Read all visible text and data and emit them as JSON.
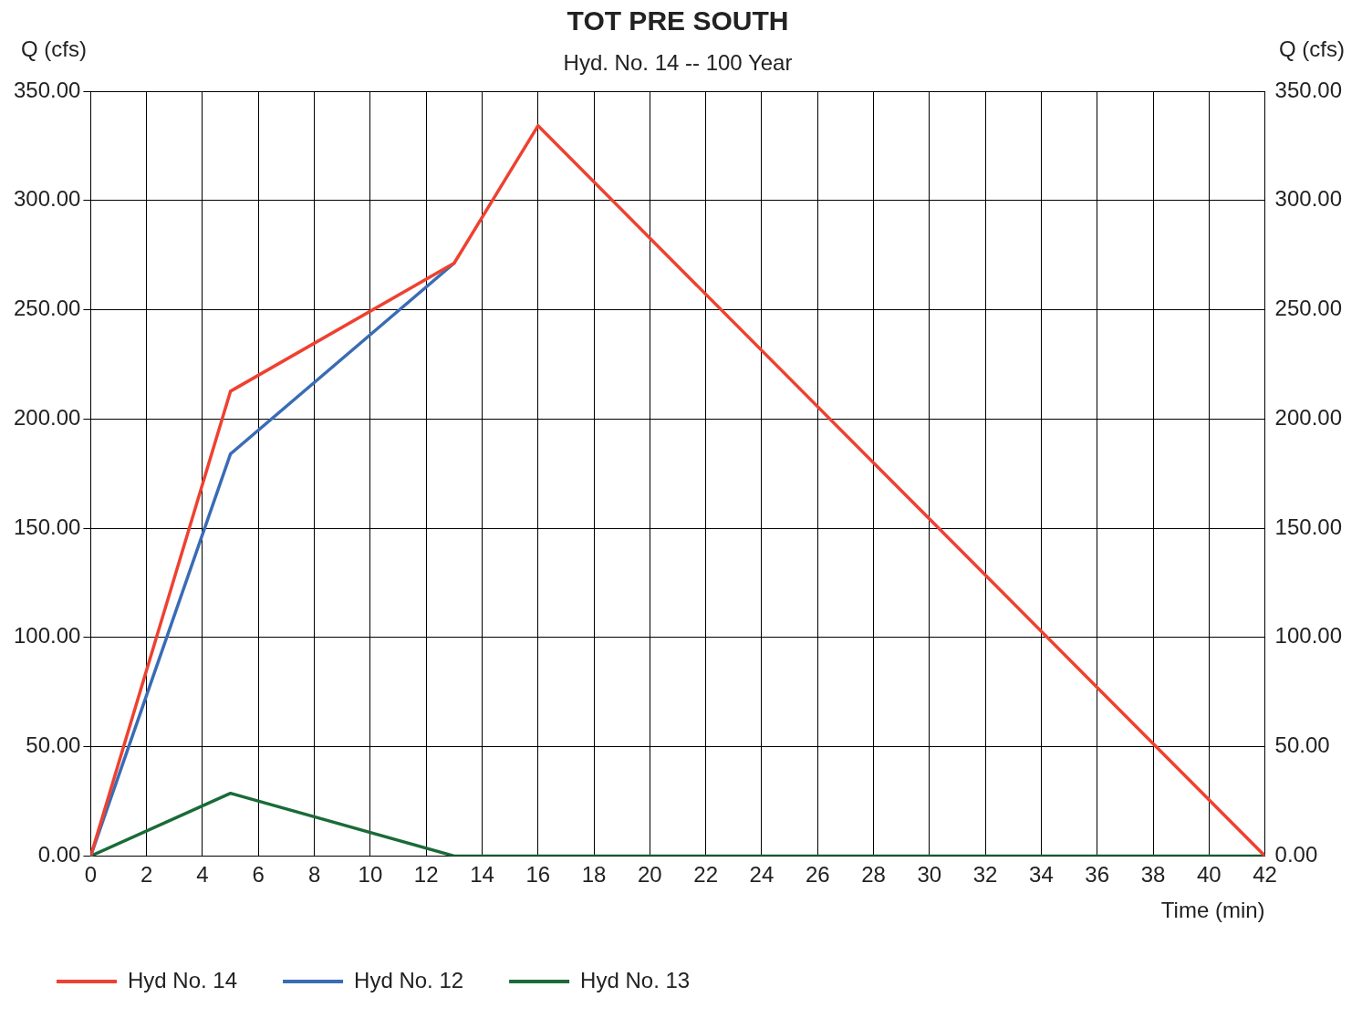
{
  "chart_data": {
    "type": "line",
    "title": "TOT PRE SOUTH",
    "subtitle": "Hyd. No. 14 -- 100 Year",
    "xlabel": "Time (min)",
    "ylabel": "Q (cfs)",
    "y2label": "Q (cfs)",
    "series": [
      {
        "name": "Hyd No. 14",
        "color": "#ee4131",
        "x": [
          0,
          5,
          13,
          16,
          42
        ],
        "values": [
          0,
          212.7,
          271.3,
          334.2,
          0
        ]
      },
      {
        "name": "Hyd No. 12",
        "color": "#3a6cb5",
        "x": [
          0,
          5,
          13
        ],
        "values": [
          0,
          184.0,
          271.3
        ]
      },
      {
        "name": "Hyd No. 13",
        "color": "#1a6b37",
        "x": [
          0,
          5,
          13,
          42
        ],
        "values": [
          0,
          28.7,
          0,
          0
        ]
      }
    ],
    "xlim": [
      0,
      42
    ],
    "xticks": [
      0,
      2,
      4,
      6,
      8,
      10,
      12,
      14,
      16,
      18,
      20,
      22,
      24,
      26,
      28,
      30,
      32,
      34,
      36,
      38,
      40,
      42
    ],
    "ylim": [
      0,
      350
    ],
    "yticks": [
      {
        "value": 0,
        "label": "0.00"
      },
      {
        "value": 50,
        "label": "50.00"
      },
      {
        "value": 100,
        "label": "100.00"
      },
      {
        "value": 150,
        "label": "150.00"
      },
      {
        "value": 200,
        "label": "200.00"
      },
      {
        "value": 250,
        "label": "250.00"
      },
      {
        "value": 300,
        "label": "300.00"
      },
      {
        "value": 350,
        "label": "350.00"
      }
    ],
    "y2lim": [
      0,
      350
    ],
    "y2ticks": [
      {
        "value": 0,
        "label": "0.00"
      },
      {
        "value": 50,
        "label": "50.00"
      },
      {
        "value": 100,
        "label": "100.00"
      },
      {
        "value": 150,
        "label": "150.00"
      },
      {
        "value": 200,
        "label": "200.00"
      },
      {
        "value": 250,
        "label": "250.00"
      },
      {
        "value": 300,
        "label": "300.00"
      },
      {
        "value": 350,
        "label": "350.00"
      }
    ],
    "grid": true,
    "legend": "bottom",
    "marker": "none",
    "line_style": "solid"
  }
}
